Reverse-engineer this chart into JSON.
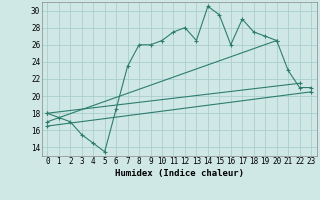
{
  "xlabel": "Humidex (Indice chaleur)",
  "ylabel": "",
  "background_color": "#cfe8e6",
  "grid_color": "#aacfcf",
  "line_color": "#2d7d6e",
  "xlim": [
    -0.5,
    23.5
  ],
  "ylim": [
    13,
    31
  ],
  "xticks": [
    0,
    1,
    2,
    3,
    4,
    5,
    6,
    7,
    8,
    9,
    10,
    11,
    12,
    13,
    14,
    15,
    16,
    17,
    18,
    19,
    20,
    21,
    22,
    23
  ],
  "yticks": [
    14,
    16,
    18,
    20,
    22,
    24,
    26,
    28,
    30
  ],
  "series1_x": [
    0,
    1,
    2,
    3,
    4,
    5,
    6,
    7,
    8,
    9,
    10,
    11,
    12,
    13,
    14,
    15,
    16,
    17,
    18,
    19,
    20,
    21,
    22,
    23
  ],
  "series1_y": [
    18,
    17.5,
    17,
    15.5,
    14.5,
    13.5,
    18.5,
    23.5,
    26,
    26,
    26.5,
    27.5,
    28,
    26.5,
    30.5,
    29.5,
    26,
    29,
    27.5,
    27,
    26.5,
    23,
    21,
    21
  ],
  "series2_x": [
    0,
    20
  ],
  "series2_y": [
    17,
    26.5
  ],
  "series3_x": [
    0,
    22
  ],
  "series3_y": [
    18,
    21.5
  ],
  "series4_x": [
    0,
    23
  ],
  "series4_y": [
    16.5,
    20.5
  ]
}
